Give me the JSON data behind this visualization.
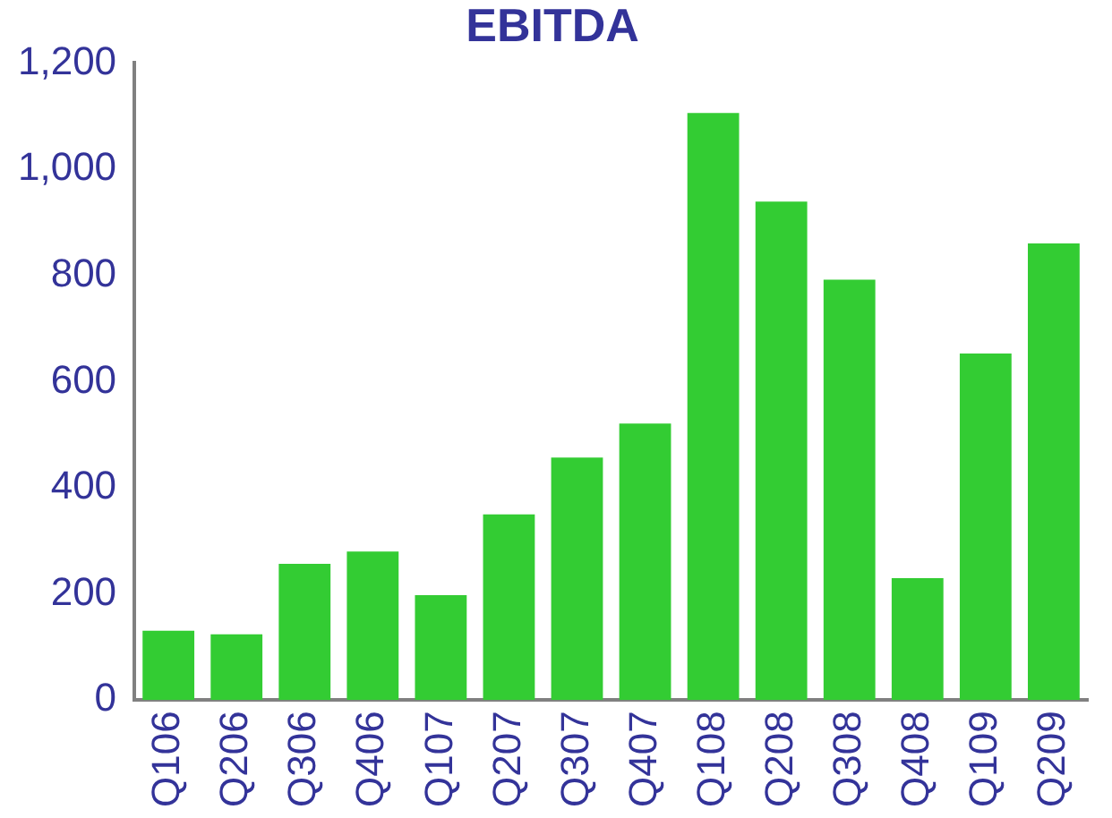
{
  "chart_data": {
    "type": "bar",
    "title": "EBITDA",
    "categories": [
      "Q106",
      "Q206",
      "Q306",
      "Q406",
      "Q107",
      "Q207",
      "Q307",
      "Q407",
      "Q108",
      "Q208",
      "Q308",
      "Q408",
      "Q109",
      "Q209"
    ],
    "values": [
      131,
      124,
      257,
      280,
      198,
      350,
      457,
      521,
      1106,
      939,
      792,
      230,
      653,
      860
    ],
    "color": "#33cc33",
    "ylim": [
      0,
      1200
    ],
    "yticks": [
      0,
      200,
      400,
      600,
      800,
      {
        "value": 1000,
        "label": "1,000"
      },
      {
        "value": 1200,
        "label": "1,200"
      }
    ],
    "grid": false,
    "legend": false
  }
}
